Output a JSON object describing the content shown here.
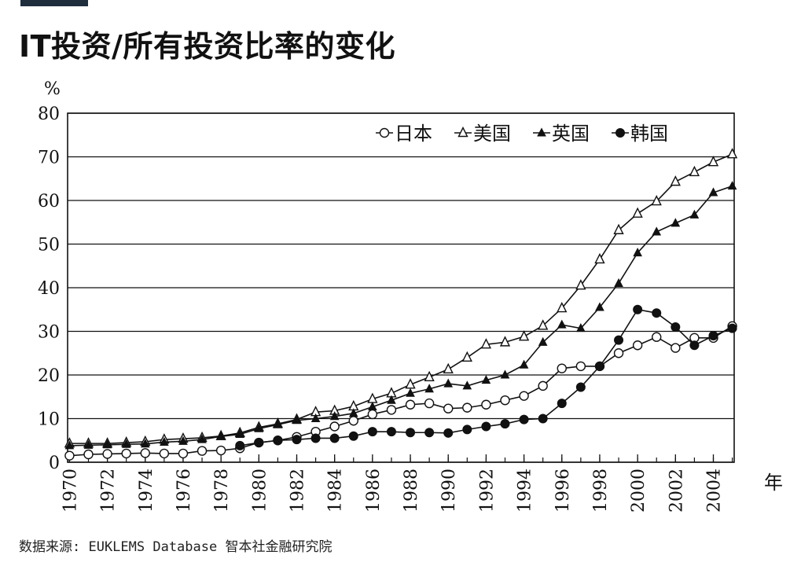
{
  "header": {
    "title": "IT投资/所有投资比率的变化"
  },
  "footer": {
    "source": "数据来源: EUKLEMS Database 智本社金融研究院"
  },
  "colors": {
    "accent_bar": "#1f2d3d",
    "line": "#111111",
    "background": "#ffffff"
  },
  "chart_data": {
    "type": "line",
    "title": "IT投资/所有投资比率的变化",
    "ylabel": "%",
    "xlabel": "年",
    "ylim": [
      0,
      80
    ],
    "yticks": [
      0,
      10,
      20,
      30,
      40,
      50,
      60,
      70,
      80
    ],
    "xticks": [
      "1970",
      "1972",
      "1974",
      "1976",
      "1978",
      "1980",
      "1982",
      "1984",
      "1986",
      "1988",
      "1990",
      "1992",
      "1994",
      "1996",
      "1998",
      "2000",
      "2002",
      "2004"
    ],
    "grid": "horizontal",
    "legend_position": "top-right",
    "x": [
      1970,
      1971,
      1972,
      1973,
      1974,
      1975,
      1976,
      1977,
      1978,
      1979,
      1980,
      1981,
      1982,
      1983,
      1984,
      1985,
      1986,
      1987,
      1988,
      1989,
      1990,
      1991,
      1992,
      1993,
      1994,
      1995,
      1996,
      1997,
      1998,
      1999,
      2000,
      2001,
      2002,
      2003,
      2004,
      2005
    ],
    "series": [
      {
        "name": "日本",
        "marker": "open-circle",
        "values": [
          1.5,
          1.8,
          1.9,
          2.0,
          2.1,
          2.0,
          2.0,
          2.6,
          2.7,
          3.2,
          4.5,
          5.0,
          5.8,
          7.0,
          8.2,
          9.5,
          11.0,
          12.0,
          13.2,
          13.5,
          12.3,
          12.5,
          13.2,
          14.2,
          15.2,
          17.5,
          21.5,
          22.0,
          22.0,
          25.0,
          26.8,
          28.7,
          26.2,
          28.5,
          28.5,
          31.2
        ]
      },
      {
        "name": "美国",
        "marker": "open-triangle",
        "values": [
          4.3,
          4.3,
          4.3,
          4.5,
          4.7,
          5.2,
          5.4,
          5.6,
          6.0,
          6.7,
          8.0,
          8.8,
          9.8,
          11.5,
          11.8,
          12.8,
          14.5,
          15.8,
          17.8,
          19.5,
          21.3,
          24.0,
          27.0,
          27.5,
          28.8,
          31.3,
          35.3,
          40.5,
          46.5,
          53.2,
          57.0,
          59.8,
          64.3,
          66.5,
          68.8,
          70.6
        ]
      },
      {
        "name": "英国",
        "marker": "filled-triangle",
        "values": [
          3.8,
          3.9,
          4.0,
          4.1,
          4.2,
          4.6,
          4.8,
          5.2,
          5.9,
          6.4,
          7.7,
          8.6,
          9.6,
          10.0,
          10.5,
          11.2,
          12.7,
          14.2,
          15.8,
          16.8,
          18.0,
          17.5,
          18.8,
          20.0,
          22.3,
          27.5,
          31.5,
          30.7,
          35.5,
          41.0,
          48.0,
          52.8,
          54.8,
          56.7,
          61.8,
          63.3
        ]
      },
      {
        "name": "韩国",
        "marker": "filled-circle",
        "values": [
          null,
          null,
          null,
          null,
          null,
          null,
          null,
          null,
          null,
          3.8,
          4.5,
          5.0,
          5.2,
          5.5,
          5.5,
          6.0,
          7.0,
          7.0,
          6.8,
          6.8,
          6.7,
          7.5,
          8.2,
          8.8,
          9.8,
          10.0,
          13.5,
          17.2,
          22.0,
          28.0,
          35.0,
          34.2,
          31.0,
          26.8,
          29.0,
          30.7
        ]
      }
    ]
  }
}
